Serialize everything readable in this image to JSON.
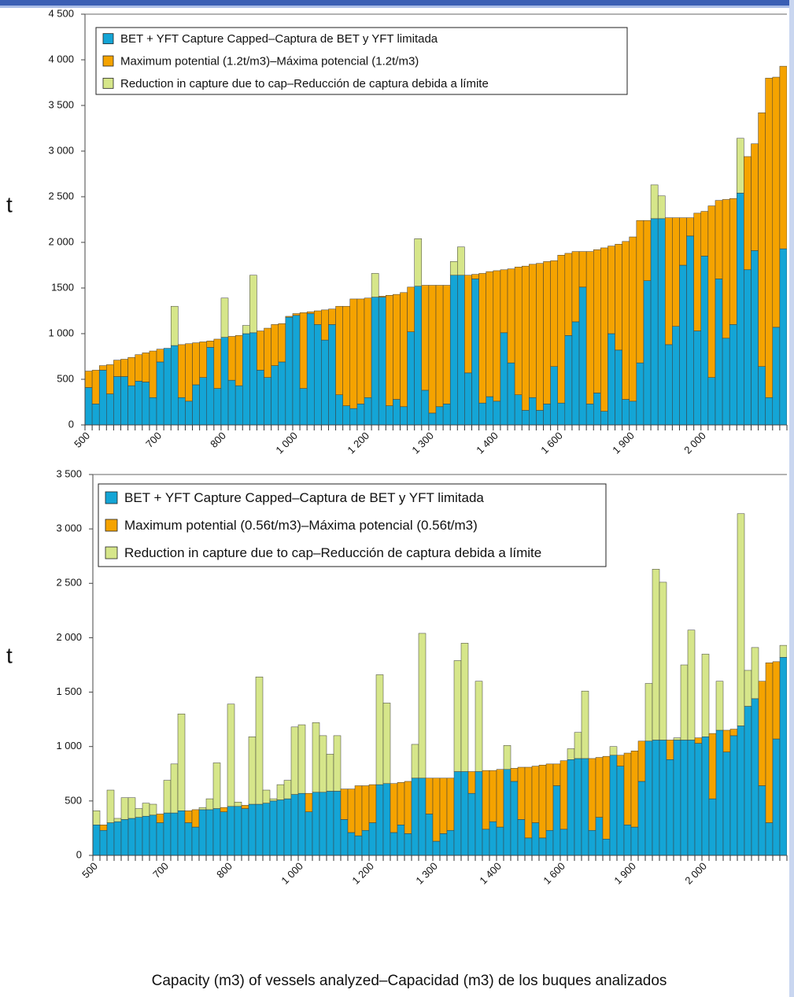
{
  "chart_data": [
    {
      "type": "stacked_bar",
      "y_label": "t",
      "categories": [
        "500",
        null,
        null,
        null,
        null,
        null,
        null,
        null,
        null,
        null,
        "700",
        null,
        null,
        null,
        null,
        null,
        null,
        null,
        null,
        "800",
        null,
        null,
        null,
        null,
        null,
        null,
        null,
        null,
        null,
        "1 000",
        null,
        null,
        null,
        null,
        null,
        null,
        null,
        null,
        null,
        "1 200",
        null,
        null,
        null,
        null,
        null,
        null,
        null,
        null,
        "1 300",
        null,
        null,
        null,
        null,
        null,
        null,
        null,
        null,
        "1 400",
        null,
        null,
        null,
        null,
        null,
        null,
        null,
        null,
        "1 600",
        null,
        null,
        null,
        null,
        null,
        null,
        null,
        null,
        null,
        "1 900",
        null,
        null,
        null,
        null,
        null,
        null,
        null,
        null,
        null,
        "2 000",
        null,
        null,
        null,
        null,
        null,
        null,
        null,
        null,
        null,
        null,
        null
      ],
      "series": [
        {
          "name": "BET + YFT Capture Capped–Captura de BET y YFT limitada",
          "color": "#14a5d6",
          "values": [
            410,
            230,
            600,
            340,
            530,
            530,
            430,
            480,
            470,
            300,
            690,
            840,
            870,
            300,
            260,
            440,
            520,
            850,
            400,
            960,
            490,
            430,
            1000,
            1010,
            600,
            520,
            650,
            690,
            1180,
            1200,
            400,
            1220,
            1100,
            930,
            1100,
            330,
            210,
            180,
            230,
            300,
            1400,
            1400,
            210,
            280,
            200,
            1020,
            1520,
            380,
            130,
            200,
            230,
            1640,
            1640,
            570,
            1600,
            240,
            310,
            260,
            1010,
            680,
            330,
            160,
            300,
            160,
            230,
            640,
            240,
            980,
            1130,
            1510,
            230,
            350,
            150,
            1000,
            820,
            280,
            260,
            680,
            1580,
            2260,
            2260,
            880,
            1080,
            1750,
            2070,
            1030,
            1850,
            520,
            1600,
            950,
            1100,
            2540,
            1700,
            1910,
            640,
            300,
            1070,
            1930
          ]
        },
        {
          "name": "Maximum potential (1.2t/m3)–Máxima potencial (1.2t/m3)",
          "color": "#f5a300",
          "values": [
            180,
            370,
            50,
            320,
            180,
            190,
            310,
            290,
            320,
            510,
            140,
            0,
            0,
            580,
            630,
            460,
            390,
            70,
            540,
            0,
            480,
            550,
            0,
            0,
            430,
            540,
            450,
            420,
            10,
            20,
            830,
            20,
            150,
            330,
            170,
            970,
            1090,
            1200,
            1150,
            1090,
            0,
            10,
            1210,
            1150,
            1250,
            490,
            0,
            1150,
            1400,
            1330,
            1300,
            0,
            0,
            1070,
            50,
            1420,
            1370,
            1430,
            690,
            1030,
            1400,
            1580,
            1460,
            1610,
            1560,
            1160,
            1620,
            900,
            770,
            390,
            1670,
            1570,
            1790,
            960,
            1160,
            1730,
            1800,
            1560,
            660,
            0,
            0,
            1390,
            1190,
            520,
            200,
            1290,
            490,
            1880,
            860,
            1520,
            1380,
            0,
            1240,
            1170,
            2780,
            3500,
            2740,
            2000
          ]
        },
        {
          "name": "Reduction in capture due to cap–Reducción de captura debida a límite",
          "color": "#d6e68a",
          "values": [
            0,
            0,
            0,
            0,
            0,
            0,
            0,
            0,
            0,
            0,
            0,
            0,
            430,
            0,
            0,
            0,
            0,
            0,
            0,
            430,
            0,
            0,
            90,
            630,
            0,
            0,
            0,
            0,
            0,
            0,
            0,
            0,
            0,
            0,
            0,
            0,
            0,
            0,
            0,
            0,
            260,
            0,
            0,
            0,
            0,
            0,
            520,
            0,
            0,
            0,
            0,
            150,
            310,
            0,
            0,
            0,
            0,
            0,
            0,
            0,
            0,
            0,
            0,
            0,
            0,
            0,
            0,
            0,
            0,
            0,
            0,
            0,
            0,
            0,
            0,
            0,
            0,
            0,
            0,
            370,
            250,
            0,
            0,
            0,
            0,
            0,
            0,
            0,
            0,
            0,
            0,
            600,
            0,
            0,
            0,
            0,
            0,
            0
          ]
        }
      ],
      "ylim": [
        0,
        4500
      ],
      "yticks": [
        0,
        500,
        {
          "value": 1000,
          "label": "1 000"
        },
        1500,
        {
          "value": 2000,
          "label": "2 000"
        },
        {
          "value": 2500,
          "label": "2 500"
        },
        {
          "value": 3000,
          "label": "3 000"
        },
        {
          "value": 3500,
          "label": "3 500"
        },
        {
          "value": 4000,
          "label": "4 000"
        },
        {
          "value": 4500,
          "label": "4 500"
        }
      ],
      "legend": "top-left"
    },
    {
      "type": "stacked_bar",
      "y_label": "t",
      "x_label": "Capacity (m3) of vessels analyzed–Capacidad (m3) de los buques analizados",
      "categories": [
        "500",
        null,
        null,
        null,
        null,
        null,
        null,
        null,
        null,
        null,
        "700",
        null,
        null,
        null,
        null,
        null,
        null,
        null,
        null,
        "800",
        null,
        null,
        null,
        null,
        null,
        null,
        null,
        null,
        null,
        "1 000",
        null,
        null,
        null,
        null,
        null,
        null,
        null,
        null,
        null,
        "1 200",
        null,
        null,
        null,
        null,
        null,
        null,
        null,
        null,
        "1 300",
        null,
        null,
        null,
        null,
        null,
        null,
        null,
        null,
        "1 400",
        null,
        null,
        null,
        null,
        null,
        null,
        null,
        null,
        "1 600",
        null,
        null,
        null,
        null,
        null,
        null,
        null,
        null,
        null,
        "1 900",
        null,
        null,
        null,
        null,
        null,
        null,
        null,
        null,
        null,
        "2 000",
        null,
        null,
        null,
        null,
        null,
        null,
        null,
        null,
        null,
        null,
        null
      ],
      "series": [
        {
          "name": "BET + YFT Capture Capped–Captura de BET y YFT limitada",
          "color": "#14a5d6",
          "values": [
            280,
            230,
            300,
            310,
            330,
            340,
            350,
            360,
            370,
            300,
            390,
            390,
            410,
            300,
            260,
            420,
            420,
            430,
            400,
            450,
            450,
            430,
            470,
            470,
            480,
            500,
            510,
            520,
            560,
            570,
            400,
            580,
            580,
            590,
            590,
            330,
            210,
            180,
            230,
            300,
            650,
            660,
            210,
            280,
            200,
            710,
            710,
            380,
            130,
            200,
            230,
            770,
            770,
            570,
            770,
            240,
            310,
            260,
            790,
            680,
            330,
            160,
            300,
            160,
            230,
            640,
            240,
            880,
            890,
            890,
            230,
            350,
            150,
            920,
            820,
            280,
            260,
            680,
            1050,
            1060,
            1060,
            880,
            1060,
            1060,
            1060,
            1030,
            1090,
            520,
            1150,
            950,
            1100,
            1190,
            1370,
            1440,
            640,
            300,
            1070,
            1820
          ]
        },
        {
          "name": "Maximum potential (0.56t/m3)–Máxima potencial (0.56t/m3)",
          "color": "#f5a300",
          "values": [
            0,
            50,
            0,
            0,
            0,
            0,
            0,
            0,
            0,
            80,
            0,
            0,
            0,
            110,
            160,
            0,
            0,
            0,
            40,
            0,
            0,
            30,
            0,
            0,
            0,
            0,
            0,
            0,
            0,
            0,
            170,
            0,
            0,
            0,
            0,
            280,
            400,
            460,
            410,
            350,
            0,
            0,
            450,
            390,
            480,
            0,
            0,
            330,
            580,
            510,
            480,
            0,
            0,
            200,
            0,
            540,
            470,
            530,
            0,
            120,
            480,
            650,
            520,
            670,
            610,
            200,
            630,
            0,
            0,
            0,
            660,
            550,
            760,
            0,
            100,
            660,
            700,
            370,
            0,
            0,
            0,
            180,
            0,
            0,
            0,
            50,
            0,
            600,
            0,
            200,
            60,
            0,
            0,
            0,
            960,
            1470,
            710,
            0
          ]
        },
        {
          "name": "Reduction in capture due to cap–Reducción de captura debida a límite",
          "color": "#d6e68a",
          "values": [
            130,
            0,
            300,
            30,
            200,
            190,
            80,
            120,
            100,
            0,
            300,
            450,
            890,
            0,
            0,
            20,
            100,
            420,
            0,
            940,
            40,
            0,
            620,
            1170,
            120,
            20,
            140,
            170,
            620,
            630,
            0,
            640,
            520,
            340,
            510,
            0,
            0,
            0,
            0,
            0,
            1010,
            740,
            0,
            0,
            0,
            310,
            1330,
            0,
            0,
            0,
            0,
            1020,
            1180,
            0,
            830,
            0,
            0,
            0,
            220,
            0,
            0,
            0,
            0,
            0,
            0,
            0,
            0,
            100,
            240,
            620,
            0,
            0,
            0,
            80,
            0,
            0,
            0,
            0,
            530,
            1570,
            1450,
            0,
            20,
            690,
            1010,
            0,
            760,
            0,
            450,
            0,
            0,
            1950,
            330,
            470,
            0,
            0,
            0,
            110
          ]
        }
      ],
      "ylim": [
        0,
        3500
      ],
      "yticks": [
        0,
        500,
        {
          "value": 1000,
          "label": "1 000"
        },
        {
          "value": 1500,
          "label": "1 500"
        },
        {
          "value": 2000,
          "label": "2 000"
        },
        {
          "value": 2500,
          "label": "2 500"
        },
        {
          "value": 3000,
          "label": "3 000"
        },
        {
          "value": 3500,
          "label": "3 500"
        }
      ],
      "legend": "top-left"
    }
  ]
}
